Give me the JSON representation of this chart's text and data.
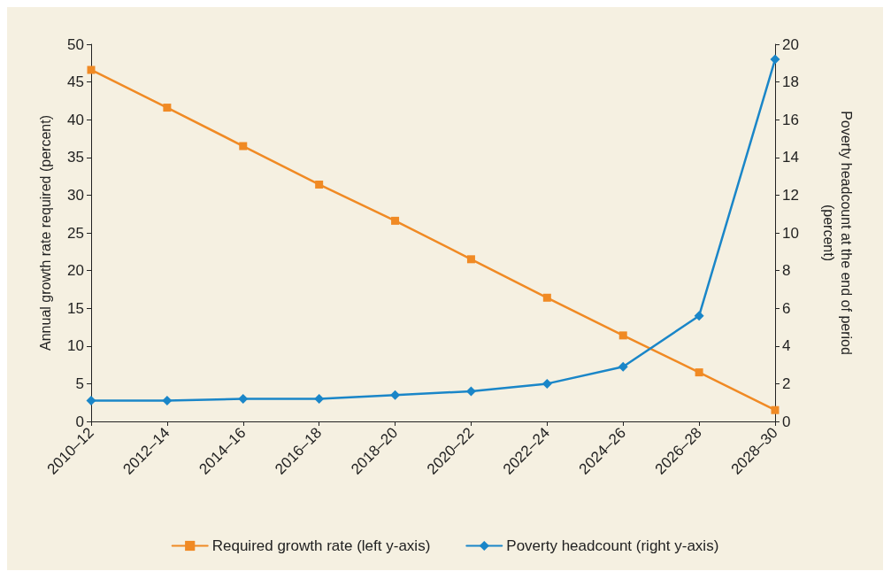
{
  "chart_data": {
    "type": "line",
    "categories": [
      "2010–12",
      "2012–14",
      "2014–16",
      "2016–18",
      "2018–20",
      "2020–22",
      "2022–24",
      "2024–26",
      "2026–28",
      "2028–30"
    ],
    "ylabel": "Annual growth rate required (percent)",
    "y2label": "Poverty headcount at the end of period (percent)",
    "ylim": [
      0,
      50
    ],
    "yticks": [
      0,
      5,
      10,
      15,
      20,
      25,
      30,
      35,
      40,
      45,
      50
    ],
    "y2lim": [
      0,
      20
    ],
    "y2ticks": [
      0,
      2,
      4,
      6,
      8,
      10,
      12,
      14,
      16,
      18,
      20
    ],
    "grid": false,
    "legend": "bottom",
    "line_style": "solid",
    "series": [
      {
        "name": "Required growth rate (left y-axis)",
        "color": "#f08a24",
        "marker": "square",
        "values": [
          46.6,
          41.6,
          36.5,
          31.4,
          26.6,
          21.5,
          16.4,
          11.4,
          6.5,
          1.5
        ]
      },
      {
        "name": "Poverty headcount (right y-axis)",
        "color": "#1a86c8",
        "marker": "diamond",
        "axis": "y2",
        "values": [
          1.1,
          1.1,
          1.2,
          1.2,
          1.4,
          1.6,
          2.0,
          2.9,
          5.6,
          19.2
        ]
      }
    ]
  }
}
